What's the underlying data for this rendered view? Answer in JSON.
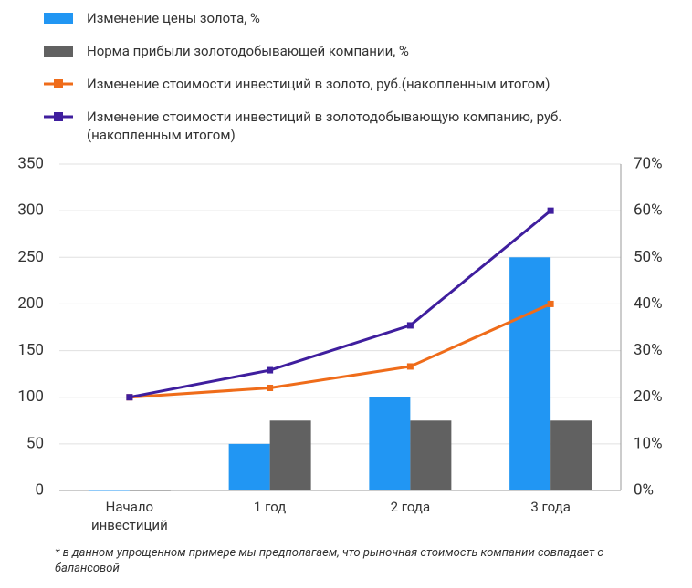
{
  "chart_data": {
    "type": "bar",
    "categories": [
      "Начало инвестиций",
      "1 год",
      "2 года",
      "3 года"
    ],
    "series": [
      {
        "name": "Изменение цены золота, %",
        "type": "bar",
        "axis": "y2",
        "color": "#2196f3",
        "values": [
          0,
          10,
          20,
          50
        ]
      },
      {
        "name": "Норма прибыли золотодобывающей компании, %",
        "type": "bar",
        "axis": "y2",
        "color": "#616161",
        "values": [
          0,
          15,
          15,
          15
        ]
      },
      {
        "name": "Изменение стоимости инвестиций в золото, руб.(накопленным итогом)",
        "type": "line",
        "color": "#ef6c1a",
        "values": [
          100,
          110,
          133,
          200
        ]
      },
      {
        "name": "Изменение стоимости инвестиций в золотодобывающую компанию, руб. (накопленным итогом)",
        "type": "line",
        "color": "#3f1e9e",
        "values": [
          100,
          129,
          177,
          300
        ]
      }
    ],
    "ylim": [
      0,
      350
    ],
    "yticks": [
      0,
      50,
      100,
      150,
      200,
      250,
      300,
      350
    ],
    "y2lim": [
      0,
      70
    ],
    "y2ticks": [
      {
        "value": 0,
        "label": "0%"
      },
      {
        "value": 10,
        "label": "10%"
      },
      {
        "value": 20,
        "label": "20%"
      },
      {
        "value": 30,
        "label": "30%"
      },
      {
        "value": 40,
        "label": "40%"
      },
      {
        "value": 50,
        "label": "50%"
      },
      {
        "value": 60,
        "label": "60%"
      },
      {
        "value": 70,
        "label": "70%"
      }
    ],
    "grid": true,
    "note": "* в данном упрощенном примере мы предполагаем, что рыночная стоимость компании совпадает с балансовой"
  }
}
